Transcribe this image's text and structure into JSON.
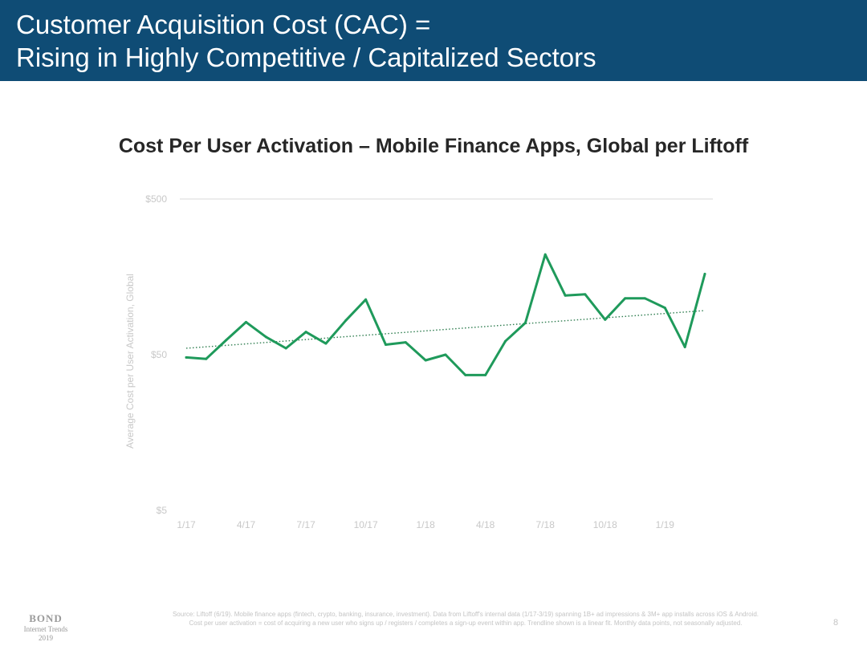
{
  "slide": {
    "header_line1": "Customer Acquisition Cost (CAC) =",
    "header_line2": "Rising in Highly Competitive / Capitalized Sectors",
    "page_number": "8",
    "source_note": "Source: Liftoff (6/19). Mobile finance apps (fintech, crypto, banking, insurance, investment). Data from Liftoff's internal data (1/17-3/19) spanning 1B+ ad impressions & 3M+ app installs across iOS & Android. Cost per user activation = cost of acquiring a new user who signs up / registers / completes a sign-up event within app. Trendline shown is a linear fit. Monthly data points, not seasonally adjusted."
  },
  "logo": {
    "word": "BOND",
    "sub1": "Internet Trends",
    "sub2": "2019"
  },
  "colors": {
    "header_bg": "#0f4c75",
    "series": "#1f9a5b",
    "trend": "#2e7d4f",
    "gridline": "#d9d9d9"
  },
  "chart_data": {
    "type": "line",
    "title": "Cost Per User Activation – Mobile Finance Apps, Global per Liftoff",
    "ylabel": "Average Cost per User Activation, Global",
    "xlabel": "",
    "y_scale": "log",
    "ylim": [
      5,
      500
    ],
    "y_ticks": [
      {
        "value": 500,
        "label": "$500"
      },
      {
        "value": 50,
        "label": "$50"
      },
      {
        "value": 5,
        "label": "$5"
      }
    ],
    "x": [
      "1/17",
      "2/17",
      "3/17",
      "4/17",
      "5/17",
      "6/17",
      "7/17",
      "8/17",
      "9/17",
      "10/17",
      "11/17",
      "12/17",
      "1/18",
      "2/18",
      "3/18",
      "4/18",
      "5/18",
      "6/18",
      "7/18",
      "8/18",
      "9/18",
      "10/18",
      "11/18",
      "12/18",
      "1/19",
      "2/19",
      "3/19"
    ],
    "x_tick_labels": [
      "1/17",
      "4/17",
      "7/17",
      "10/17",
      "1/18",
      "4/18",
      "7/18",
      "10/18",
      "1/19"
    ],
    "series": [
      {
        "values": [
          48,
          47,
          62,
          81,
          65,
          55,
          70,
          59,
          83,
          113,
          58,
          60,
          46,
          50,
          37,
          37,
          61,
          80,
          220,
          120,
          122,
          84,
          115,
          115,
          100,
          56,
          165
        ]
      }
    ],
    "trendline": {
      "start": 55,
      "end": 96,
      "style": "dotted"
    },
    "grid": true,
    "legend": "none"
  }
}
